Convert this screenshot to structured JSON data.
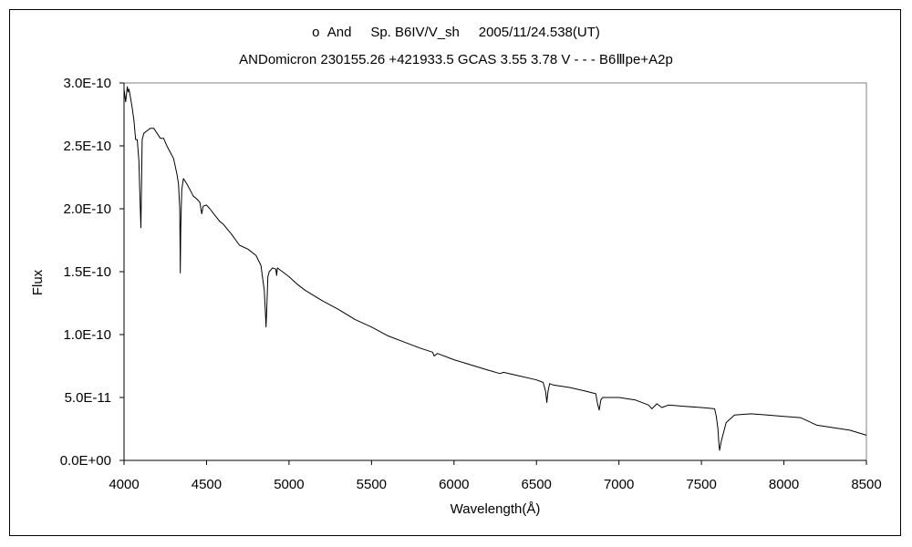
{
  "chart_data": {
    "type": "line",
    "title": "ο  And     Sp. B6IV/V_sh     2005/11/24.538(UT)",
    "subtitle": "ANDomicron 230155.26 +421933.5 GCAS 3.55 3.78 V - - - B6Ⅲpe+A2p",
    "xlabel": "Wavelength(Å)",
    "ylabel": "Flux",
    "xlim": [
      4000,
      8500
    ],
    "ylim": [
      0,
      3e-10
    ],
    "x_ticks": [
      4000,
      4500,
      5000,
      5500,
      6000,
      6500,
      7000,
      7500,
      8000,
      8500
    ],
    "x_tick_labels": [
      "4000",
      "4500",
      "5000",
      "5500",
      "6000",
      "6500",
      "7000",
      "7500",
      "8000",
      "8500"
    ],
    "y_ticks": [
      0,
      5e-11,
      1e-10,
      1.5e-10,
      2e-10,
      2.5e-10,
      3e-10
    ],
    "y_tick_labels": [
      "0.0E+00",
      "5.0E-11",
      "1.0E-10",
      "1.5E-10",
      "2.0E-10",
      "2.5E-10",
      "3.0E-10"
    ],
    "grid": false,
    "legend": "none",
    "line_color": "#000000",
    "series": [
      {
        "x": [
          4000,
          4010,
          4020,
          4025,
          4030,
          4040,
          4050,
          4060,
          4070,
          4080,
          4090,
          4095,
          4102,
          4106,
          4110,
          4120,
          4140,
          4160,
          4180,
          4200,
          4220,
          4240,
          4260,
          4280,
          4300,
          4320,
          4330,
          4338,
          4341,
          4344,
          4350,
          4360,
          4380,
          4400,
          4420,
          4440,
          4460,
          4471,
          4480,
          4500,
          4520,
          4550,
          4580,
          4600,
          4650,
          4700,
          4750,
          4800,
          4830,
          4850,
          4858,
          4861,
          4865,
          4872,
          4880,
          4900,
          4920,
          4925,
          4930,
          4950,
          5000,
          5050,
          5100,
          5200,
          5300,
          5400,
          5500,
          5600,
          5700,
          5800,
          5870,
          5880,
          5900,
          6000,
          6100,
          6200,
          6280,
          6300,
          6400,
          6500,
          6540,
          6555,
          6563,
          6570,
          6580,
          6600,
          6700,
          6800,
          6860,
          6870,
          6880,
          6890,
          6900,
          7000,
          7100,
          7180,
          7200,
          7230,
          7260,
          7300,
          7400,
          7500,
          7580,
          7590,
          7600,
          7605,
          7610,
          7620,
          7650,
          7700,
          7800,
          7900,
          8000,
          8100,
          8150,
          8200,
          8300,
          8400,
          8500
        ],
        "y": [
          2.95e-10,
          2.85e-10,
          2.97e-10,
          2.93e-10,
          2.95e-10,
          2.88e-10,
          2.8e-10,
          2.7e-10,
          2.55e-10,
          2.55e-10,
          2.38e-10,
          2.15e-10,
          1.85e-10,
          2.2e-10,
          2.55e-10,
          2.6e-10,
          2.62e-10,
          2.64e-10,
          2.64e-10,
          2.6e-10,
          2.56e-10,
          2.56e-10,
          2.5e-10,
          2.45e-10,
          2.4e-10,
          2.28e-10,
          2.2e-10,
          2e-10,
          1.49e-10,
          1.85e-10,
          2.15e-10,
          2.24e-10,
          2.2e-10,
          2.15e-10,
          2.1e-10,
          2.08e-10,
          2.05e-10,
          1.96e-10,
          2.02e-10,
          2.03e-10,
          2e-10,
          1.95e-10,
          1.9e-10,
          1.88e-10,
          1.8e-10,
          1.71e-10,
          1.68e-10,
          1.63e-10,
          1.55e-10,
          1.35e-10,
          1.15e-10,
          1.06e-10,
          1.2e-10,
          1.46e-10,
          1.5e-10,
          1.53e-10,
          1.52e-10,
          1.47e-10,
          1.53e-10,
          1.51e-10,
          1.46e-10,
          1.4e-10,
          1.35e-10,
          1.27e-10,
          1.2e-10,
          1.12e-10,
          1.06e-10,
          9.9e-11,
          9.4e-11,
          8.9e-11,
          8.6e-11,
          8.3e-11,
          8.5e-11,
          8e-11,
          7.6e-11,
          7.2e-11,
          6.9e-11,
          7e-11,
          6.7e-11,
          6.4e-11,
          6.2e-11,
          5.5e-11,
          4.6e-11,
          5.5e-11,
          6.1e-11,
          6e-11,
          5.8e-11,
          5.5e-11,
          5.3e-11,
          4.5e-11,
          4e-11,
          4.8e-11,
          5e-11,
          5e-11,
          4.8e-11,
          4.4e-11,
          4.1e-11,
          4.5e-11,
          4.2e-11,
          4.4e-11,
          4.3e-11,
          4.2e-11,
          4.1e-11,
          3.5e-11,
          2.5e-11,
          1.5e-11,
          8e-12,
          1.5e-11,
          3e-11,
          3.6e-11,
          3.7e-11,
          3.6e-11,
          3.5e-11,
          3.4e-11,
          3.1e-11,
          2.8e-11,
          2.6e-11,
          2.4e-11,
          2e-11
        ]
      }
    ]
  }
}
